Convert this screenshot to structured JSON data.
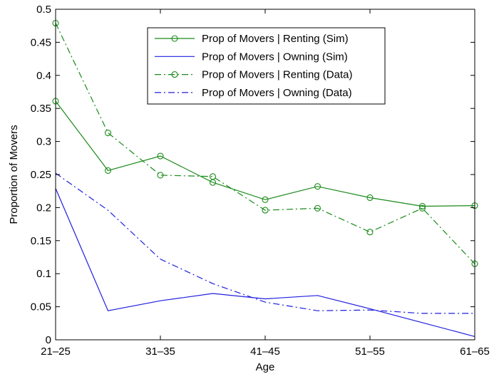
{
  "chart_data": {
    "type": "line",
    "title": "",
    "xlabel": "Age",
    "ylabel": "Proportion of Movers",
    "categories": [
      "21–25",
      "",
      "31–35",
      "",
      "41–45",
      "",
      "51–55",
      "",
      "61–65"
    ],
    "ylim": [
      0,
      0.5
    ],
    "yticks": [
      "0",
      "0.05",
      "0.1",
      "0.15",
      "0.2",
      "0.25",
      "0.3",
      "0.35",
      "0.4",
      "0.45",
      "0.5"
    ],
    "ytick_values": [
      0,
      0.05,
      0.1,
      0.15,
      0.2,
      0.25,
      0.3,
      0.35,
      0.4,
      0.45,
      0.5
    ],
    "legend_position": "top-center",
    "grid": false,
    "series": [
      {
        "name": "Prop of Movers | Renting (Sim)",
        "color": "#1a8a1a",
        "style": "solid",
        "marker": "circle",
        "values": [
          0.361,
          0.256,
          0.278,
          0.238,
          0.212,
          0.232,
          0.215,
          0.202,
          0.203
        ]
      },
      {
        "name": "Prop of Movers | Owning (Sim)",
        "color": "#1f1fe0",
        "style": "solid",
        "marker": "none",
        "values": [
          0.229,
          0.044,
          0.059,
          0.07,
          0.062,
          0.067,
          0.047,
          0.026,
          0.005
        ]
      },
      {
        "name": "Prop of Movers | Renting (Data)",
        "color": "#1a8a1a",
        "style": "dashdot",
        "marker": "circle",
        "values": [
          0.479,
          0.313,
          0.249,
          0.247,
          0.196,
          0.199,
          0.163,
          0.199,
          0.115
        ]
      },
      {
        "name": "Prop of Movers | Owning (Data)",
        "color": "#1f1fe0",
        "style": "dashdot",
        "marker": "none",
        "values": [
          0.252,
          0.196,
          0.122,
          0.085,
          0.057,
          0.044,
          0.045,
          0.04,
          0.04
        ]
      }
    ]
  }
}
